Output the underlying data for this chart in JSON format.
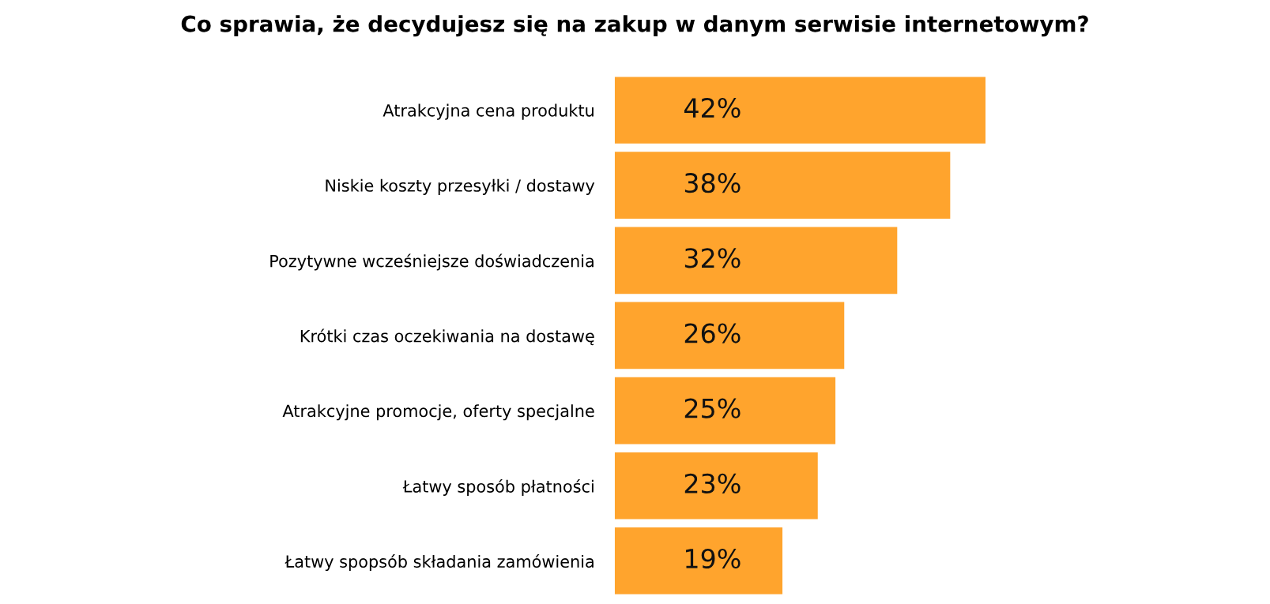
{
  "chart_data": {
    "type": "bar",
    "orientation": "horizontal",
    "title": "Co sprawia, że decydujesz się na zakup w danym serwisie internetowym?",
    "categories": [
      "Atrakcyjna cena produktu",
      "Niskie koszty przesyłki / dostawy",
      "Pozytywne wcześniejsze doświadczenia",
      "Krótki czas oczekiwania na dostawę",
      "Atrakcyjne promocje, oferty specjalne",
      "Łatwy sposób płatności",
      "Łatwy spopsób składania zamówienia"
    ],
    "values": [
      42,
      38,
      32,
      26,
      25,
      23,
      19
    ],
    "value_labels": [
      "42%",
      "38%",
      "32%",
      "26%",
      "25%",
      "23%",
      "19%"
    ],
    "color": "#ffa42d",
    "grid": false,
    "legend": false,
    "tick_labels": "y"
  }
}
